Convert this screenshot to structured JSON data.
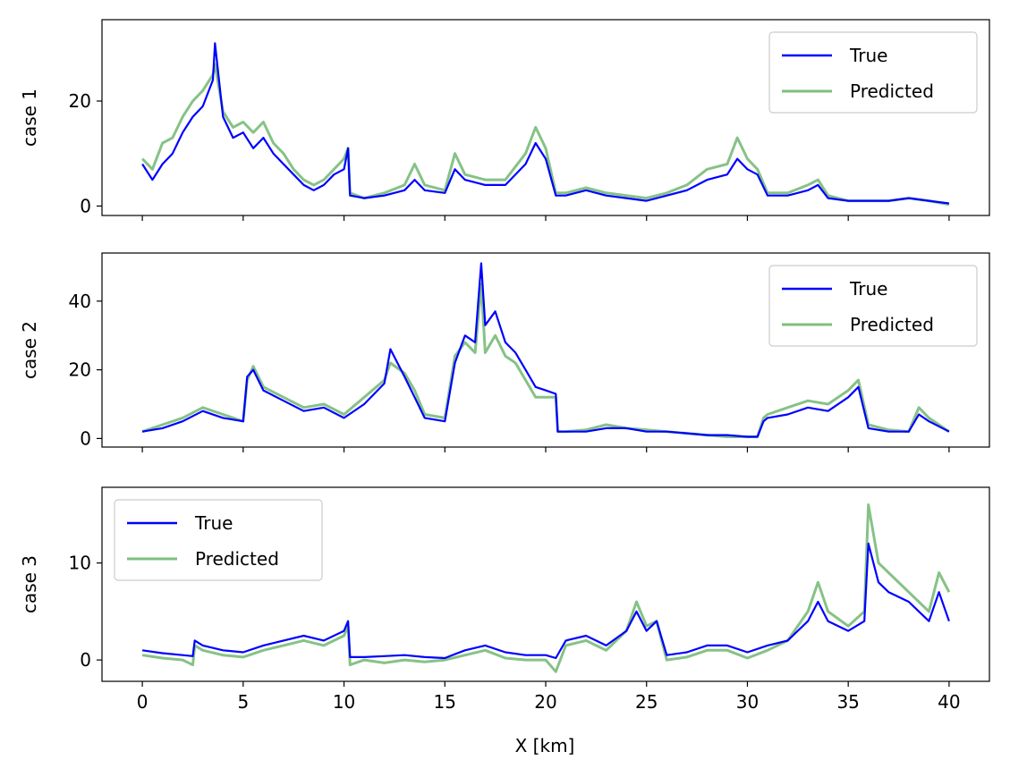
{
  "colors": {
    "true": "#0000ff",
    "predicted": "#7fbf7f"
  },
  "xlabel": "X [km]",
  "xlim": [
    -2,
    42
  ],
  "xticks": [
    0,
    5,
    10,
    15,
    20,
    25,
    30,
    35,
    40
  ],
  "chart_data": [
    {
      "type": "line",
      "ylabel": "case 1",
      "ylim": [
        -1.8,
        35.5
      ],
      "yticks": [
        0,
        20
      ],
      "legend": "upper right",
      "series": [
        {
          "name": "True",
          "x": [
            0,
            0.5,
            1,
            1.5,
            2,
            2.5,
            3,
            3.5,
            3.6,
            4,
            4.5,
            5,
            5.5,
            6,
            6.5,
            7,
            7.5,
            8,
            8.5,
            9,
            9.5,
            10,
            10.2,
            10.3,
            11,
            12,
            13,
            13.5,
            14,
            15,
            15.5,
            16,
            17,
            18,
            19,
            19.5,
            20,
            20.5,
            21,
            22,
            23,
            24,
            25,
            26,
            27,
            28,
            29,
            29.5,
            30,
            30.5,
            31,
            32,
            33,
            33.5,
            34,
            35,
            36,
            37,
            38,
            39,
            40
          ],
          "values": [
            8,
            5,
            8,
            10,
            14,
            17,
            19,
            24,
            31,
            17,
            13,
            14,
            11,
            13,
            10,
            8,
            6,
            4,
            3,
            4,
            6,
            7,
            11,
            2,
            1.5,
            2,
            3,
            5,
            3,
            2.5,
            7,
            5,
            4,
            4,
            8,
            12,
            9,
            2,
            2,
            3,
            2,
            1.5,
            1,
            2,
            3,
            5,
            6,
            9,
            7,
            6,
            2,
            2,
            3,
            4,
            1.5,
            1,
            1,
            1,
            1.5,
            1,
            0.5
          ]
        },
        {
          "name": "Predicted",
          "x": [
            0,
            0.5,
            1,
            1.5,
            2,
            2.5,
            3,
            3.5,
            3.6,
            4,
            4.5,
            5,
            5.5,
            6,
            6.5,
            7,
            7.5,
            8,
            8.5,
            9,
            9.5,
            10,
            10.2,
            10.3,
            11,
            12,
            13,
            13.5,
            14,
            15,
            15.5,
            16,
            17,
            18,
            19,
            19.5,
            20,
            20.5,
            21,
            22,
            23,
            24,
            25,
            26,
            27,
            28,
            29,
            29.5,
            30,
            30.5,
            31,
            32,
            33,
            33.5,
            34,
            35,
            36,
            37,
            38,
            39,
            40
          ],
          "values": [
            9,
            7,
            12,
            13,
            17,
            20,
            22,
            25,
            27,
            18,
            15,
            16,
            14,
            16,
            12,
            10,
            7,
            5,
            4,
            5,
            7,
            9,
            11,
            2.5,
            1.5,
            2.5,
            4,
            8,
            4,
            3,
            10,
            6,
            5,
            5,
            10,
            15,
            11,
            2.5,
            2.5,
            3.5,
            2.5,
            2,
            1.5,
            2.5,
            4,
            7,
            8,
            13,
            9,
            7,
            2.5,
            2.5,
            4,
            5,
            2,
            1,
            1,
            1,
            1.5,
            1,
            0.3
          ]
        }
      ]
    },
    {
      "type": "line",
      "ylabel": "case 2",
      "ylim": [
        -2.5,
        54
      ],
      "yticks": [
        0,
        20,
        40
      ],
      "legend": "upper right",
      "series": [
        {
          "name": "True",
          "x": [
            0,
            1,
            2,
            3,
            4,
            5,
            5.2,
            5.5,
            6,
            7,
            8,
            9,
            10,
            11,
            12,
            12.3,
            13,
            13.5,
            14,
            15,
            15.5,
            16,
            16.5,
            16.8,
            17,
            17.5,
            18,
            18.5,
            19,
            19.5,
            20,
            20.5,
            20.6,
            21,
            22,
            23,
            24,
            25,
            26,
            27,
            28,
            29,
            30,
            30.5,
            30.8,
            31,
            32,
            33,
            34,
            35,
            35.5,
            36,
            37,
            38,
            38.5,
            39,
            40
          ],
          "values": [
            2,
            3,
            5,
            8,
            6,
            5,
            18,
            20,
            14,
            11,
            8,
            9,
            6,
            10,
            16,
            26,
            18,
            12,
            6,
            5,
            22,
            30,
            28,
            51,
            33,
            37,
            28,
            25,
            20,
            15,
            14,
            13,
            2,
            2,
            2,
            3,
            3,
            2,
            2,
            1.5,
            1,
            1,
            0.5,
            0.5,
            5,
            6,
            7,
            9,
            8,
            12,
            15,
            3,
            2,
            2,
            7,
            5,
            2
          ]
        },
        {
          "name": "Predicted",
          "x": [
            0,
            1,
            2,
            3,
            4,
            5,
            5.2,
            5.5,
            6,
            7,
            8,
            9,
            10,
            11,
            12,
            12.3,
            13,
            13.5,
            14,
            15,
            15.5,
            16,
            16.5,
            16.8,
            17,
            17.5,
            18,
            18.5,
            19,
            19.5,
            20,
            20.5,
            20.6,
            21,
            22,
            23,
            24,
            25,
            26,
            27,
            28,
            29,
            30,
            30.5,
            30.8,
            31,
            32,
            33,
            34,
            35,
            35.5,
            36,
            37,
            38,
            38.5,
            39,
            40
          ],
          "values": [
            2,
            4,
            6,
            9,
            7,
            5,
            17,
            21,
            15,
            12,
            9,
            10,
            7,
            12,
            17,
            22,
            19,
            14,
            7,
            6,
            24,
            28,
            25,
            45,
            25,
            30,
            24,
            22,
            17,
            12,
            12,
            12,
            2,
            2,
            2.5,
            4,
            3,
            2.5,
            2,
            1.5,
            1,
            0.5,
            0.5,
            0.5,
            6,
            7,
            9,
            11,
            10,
            14,
            17,
            4,
            2.5,
            2,
            9,
            6,
            2
          ]
        }
      ]
    },
    {
      "type": "line",
      "ylabel": "case 3",
      "ylim": [
        -2.2,
        17.8
      ],
      "yticks": [
        0,
        10
      ],
      "legend": "upper left",
      "series": [
        {
          "name": "True",
          "x": [
            0,
            1,
            2,
            2.5,
            2.6,
            3,
            4,
            5,
            6,
            7,
            8,
            9,
            10,
            10.2,
            10.3,
            11,
            12,
            13,
            14,
            15,
            16,
            17,
            18,
            19,
            20,
            20.5,
            21,
            22,
            23,
            24,
            24.5,
            25,
            25.5,
            26,
            27,
            28,
            29,
            30,
            31,
            32,
            33,
            33.5,
            34,
            35,
            35.8,
            36,
            36.5,
            37,
            38,
            39,
            39.5,
            40
          ],
          "values": [
            1,
            0.7,
            0.5,
            0.4,
            2,
            1.5,
            1,
            0.8,
            1.5,
            2,
            2.5,
            2,
            3,
            4,
            0.3,
            0.3,
            0.4,
            0.5,
            0.3,
            0.2,
            1,
            1.5,
            0.8,
            0.5,
            0.5,
            0.2,
            2,
            2.5,
            1.5,
            3,
            5,
            3,
            4,
            0.5,
            0.8,
            1.5,
            1.5,
            0.8,
            1.5,
            2,
            4,
            6,
            4,
            3,
            4,
            12,
            8,
            7,
            6,
            4,
            7,
            4
          ]
        },
        {
          "name": "Predicted",
          "x": [
            0,
            1,
            2,
            2.5,
            2.6,
            3,
            4,
            5,
            6,
            7,
            8,
            9,
            10,
            10.2,
            10.3,
            11,
            12,
            13,
            14,
            15,
            16,
            17,
            18,
            19,
            20,
            20.5,
            21,
            22,
            23,
            24,
            24.5,
            25,
            25.5,
            26,
            27,
            28,
            29,
            30,
            31,
            32,
            33,
            33.5,
            34,
            35,
            35.8,
            36,
            36.5,
            37,
            38,
            39,
            39.5,
            40
          ],
          "values": [
            0.5,
            0.2,
            0,
            -0.5,
            1.5,
            1,
            0.5,
            0.3,
            1,
            1.5,
            2,
            1.5,
            2.5,
            3.5,
            -0.5,
            0,
            -0.3,
            0,
            -0.2,
            0,
            0.5,
            1,
            0.2,
            0,
            0,
            -1.2,
            1.5,
            2,
            1,
            3,
            6,
            3.5,
            4,
            0,
            0.3,
            1,
            1,
            0.2,
            1,
            2,
            5,
            8,
            5,
            3.5,
            5,
            16,
            10,
            9,
            7,
            5,
            9,
            7
          ]
        }
      ]
    }
  ]
}
